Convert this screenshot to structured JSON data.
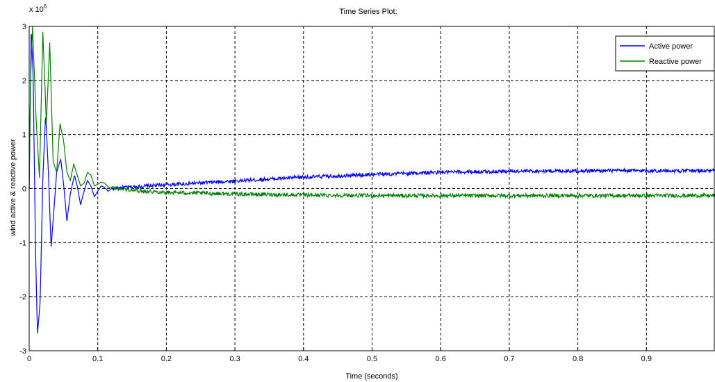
{
  "chart_data": {
    "type": "line",
    "title": "Time Series Plot:",
    "xlabel": "Time (seconds)",
    "ylabel": "wind active & reactive power",
    "y_multiplier": "x 10",
    "y_multiplier_exponent": "6",
    "xlim": [
      0,
      1
    ],
    "ylim": [
      -3,
      3
    ],
    "xticks": [
      0,
      0.1,
      0.2,
      0.3,
      0.4,
      0.5,
      0.6,
      0.7,
      0.8,
      0.9
    ],
    "xtick_labels": [
      "0",
      "0.1",
      "0.2",
      "0.3",
      "0.4",
      "0.5",
      "0.6",
      "0.7",
      "0.8",
      "0.9"
    ],
    "yticks": [
      3,
      2,
      1,
      0,
      -1,
      -2,
      -3
    ],
    "ytick_labels": [
      "3",
      "2",
      "1",
      "0",
      "-1",
      "-2",
      "-3"
    ],
    "grid": true,
    "legend_position": "top-right",
    "series": [
      {
        "name": "Active power",
        "color": "#0000ff",
        "x": [
          0,
          0.003,
          0.006,
          0.009,
          0.012,
          0.016,
          0.02,
          0.024,
          0.028,
          0.032,
          0.036,
          0.04,
          0.046,
          0.05,
          0.055,
          0.06,
          0.066,
          0.07,
          0.075,
          0.08,
          0.085,
          0.09,
          0.095,
          0.1,
          0.105,
          0.11,
          0.115,
          0.12,
          0.13,
          0.15,
          0.2,
          0.3,
          0.4,
          0.5,
          0.6,
          0.7,
          0.8,
          0.9,
          1.0
        ],
        "y": [
          0,
          3,
          2,
          -1,
          -2.7,
          -2.1,
          0.2,
          1.4,
          0.3,
          -1.1,
          -0.4,
          0.3,
          0.55,
          0.1,
          -0.6,
          -0.1,
          0.25,
          0.05,
          -0.3,
          -0.05,
          0.15,
          0.05,
          -0.15,
          -0.05,
          0.05,
          0.02,
          -0.05,
          0.0,
          0.01,
          0.03,
          0.07,
          0.14,
          0.21,
          0.26,
          0.3,
          0.32,
          0.33,
          0.33,
          0.33
        ]
      },
      {
        "name": "Reactive power",
        "color": "#008000",
        "x": [
          0,
          0.002,
          0.005,
          0.01,
          0.015,
          0.02,
          0.025,
          0.03,
          0.035,
          0.04,
          0.045,
          0.05,
          0.055,
          0.06,
          0.065,
          0.07,
          0.075,
          0.08,
          0.085,
          0.09,
          0.095,
          0.1,
          0.105,
          0.11,
          0.115,
          0.12,
          0.13,
          0.15,
          0.2,
          0.3,
          0.4,
          0.5,
          0.6,
          0.7,
          0.8,
          0.9,
          1.0
        ],
        "y": [
          0,
          2,
          3,
          1.3,
          0.2,
          2.9,
          1.2,
          2.7,
          0.5,
          0.3,
          1.2,
          0.9,
          0.3,
          0.15,
          0.45,
          0.25,
          0.05,
          0.1,
          0.3,
          0.25,
          0.05,
          0.08,
          0.12,
          0.1,
          0.03,
          0.02,
          0.0,
          -0.03,
          -0.07,
          -0.1,
          -0.12,
          -0.13,
          -0.13,
          -0.13,
          -0.13,
          -0.13,
          -0.13
        ]
      }
    ]
  }
}
